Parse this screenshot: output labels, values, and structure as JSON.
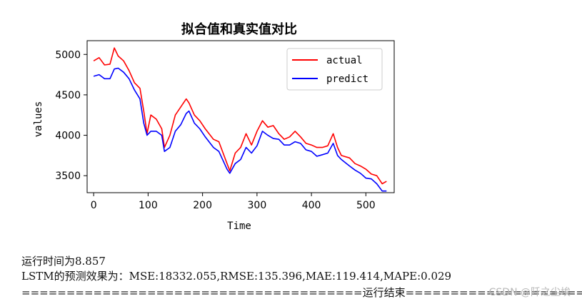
{
  "chart_data": {
    "type": "line",
    "title": "拟合值和真实值对比",
    "xlabel": "Time",
    "ylabel": "values",
    "xlim": [
      -12,
      552
    ],
    "ylim": [
      3290,
      5170
    ],
    "xticks": [
      0,
      100,
      200,
      300,
      400,
      500
    ],
    "yticks": [
      3500,
      4000,
      4500,
      5000
    ],
    "legend_position": "top-right",
    "series": [
      {
        "name": "actual",
        "color": "#ff0000",
        "x": [
          0,
          10,
          20,
          30,
          38,
          45,
          55,
          65,
          75,
          85,
          92,
          98,
          105,
          115,
          125,
          130,
          140,
          150,
          160,
          170,
          175,
          185,
          195,
          205,
          220,
          230,
          245,
          250,
          260,
          270,
          280,
          290,
          300,
          310,
          320,
          330,
          340,
          350,
          360,
          370,
          380,
          390,
          400,
          410,
          420,
          430,
          440,
          448,
          455,
          470,
          480,
          490,
          500,
          510,
          520,
          530,
          538
        ],
        "values": [
          4920,
          4960,
          4870,
          4880,
          5080,
          4980,
          4920,
          4800,
          4650,
          4580,
          4300,
          4020,
          4250,
          4200,
          4080,
          3850,
          4000,
          4250,
          4350,
          4450,
          4400,
          4250,
          4180,
          4080,
          3950,
          3920,
          3650,
          3560,
          3780,
          3850,
          4020,
          3880,
          4050,
          4180,
          4100,
          4120,
          4020,
          3950,
          3980,
          4050,
          3980,
          3900,
          3880,
          3850,
          3850,
          3870,
          4020,
          3850,
          3750,
          3720,
          3650,
          3620,
          3580,
          3520,
          3500,
          3400,
          3430
        ]
      },
      {
        "name": "predict",
        "color": "#0000ff",
        "x": [
          0,
          10,
          20,
          30,
          38,
          45,
          55,
          65,
          75,
          85,
          92,
          98,
          105,
          115,
          125,
          130,
          140,
          150,
          160,
          170,
          175,
          185,
          195,
          205,
          220,
          230,
          245,
          250,
          260,
          270,
          280,
          290,
          300,
          310,
          320,
          330,
          340,
          350,
          360,
          370,
          380,
          390,
          400,
          410,
          420,
          430,
          440,
          448,
          455,
          470,
          480,
          490,
          500,
          510,
          520,
          530,
          538
        ],
        "values": [
          4730,
          4750,
          4700,
          4700,
          4820,
          4830,
          4780,
          4700,
          4560,
          4450,
          4150,
          4000,
          4050,
          4050,
          4000,
          3800,
          3850,
          4050,
          4130,
          4270,
          4300,
          4150,
          4080,
          3980,
          3850,
          3800,
          3580,
          3530,
          3650,
          3700,
          3850,
          3780,
          3870,
          4050,
          4000,
          3960,
          3950,
          3880,
          3880,
          3920,
          3900,
          3820,
          3800,
          3740,
          3760,
          3780,
          3900,
          3750,
          3700,
          3620,
          3570,
          3530,
          3470,
          3460,
          3400,
          3310,
          3310
        ]
      }
    ]
  },
  "console": {
    "line1": "运行时间为8.857",
    "line2": "LSTM的预测效果为：MSE:18332.055,RMSE:135.396,MAE:119.414,MAPE:0.029",
    "line3": "======================================运行结束========================================"
  },
  "watermark": "CSDN @阡之尘埃"
}
